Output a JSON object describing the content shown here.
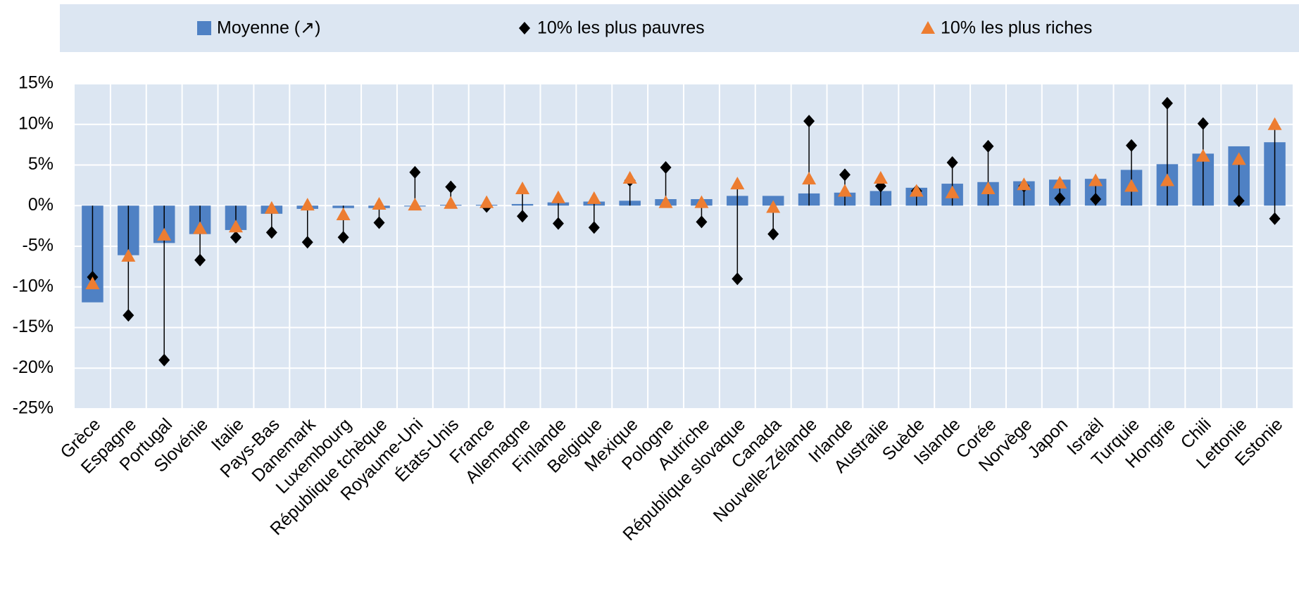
{
  "chart_data": {
    "type": "bar",
    "categories": [
      "Grèce",
      "Espagne",
      "Portugal",
      "Slovénie",
      "Italie",
      "Pays-Bas",
      "Danemark",
      "Luxembourg",
      "République tchèque",
      "Royaume-Uni",
      "États-Unis",
      "France",
      "Allemagne",
      "Finlande",
      "Belgique",
      "Mexique",
      "Pologne",
      "Autriche",
      "République slovaque",
      "Canada",
      "Nouvelle-Zélande",
      "Irlande",
      "Australie",
      "Suède",
      "Islande",
      "Corée",
      "Norvège",
      "Japon",
      "Israël",
      "Turquie",
      "Hongrie",
      "Chili",
      "Lettonie",
      "Estonie"
    ],
    "series": [
      {
        "name": "Moyenne (↗)",
        "color": "#4f81c4",
        "marker": "bar",
        "values": [
          -11.9,
          -6.1,
          -4.6,
          -3.5,
          -3.0,
          -1.0,
          -0.4,
          -0.3,
          -0.3,
          -0.1,
          0.1,
          0.1,
          0.2,
          0.4,
          0.5,
          0.6,
          0.8,
          0.8,
          1.2,
          1.2,
          1.5,
          1.6,
          1.8,
          2.2,
          2.7,
          2.9,
          3.0,
          3.2,
          3.3,
          4.4,
          5.1,
          6.4,
          7.3,
          7.8
        ]
      },
      {
        "name": "10% les plus pauvres",
        "color": "#000000",
        "marker": "diamond",
        "values": [
          -8.8,
          -13.5,
          -19.0,
          -6.7,
          -3.9,
          -3.3,
          -4.5,
          -3.9,
          -2.1,
          4.1,
          2.3,
          -0.1,
          -1.3,
          -2.2,
          -2.7,
          3.1,
          4.7,
          -2.0,
          -9.0,
          -3.5,
          10.4,
          3.8,
          2.4,
          1.8,
          5.3,
          7.3,
          2.4,
          0.9,
          0.8,
          7.4,
          12.6,
          10.1,
          0.6,
          -1.6
        ]
      },
      {
        "name": "10% les plus riches",
        "color": "#ed7d31",
        "marker": "triangle",
        "values": [
          -9.6,
          -6.2,
          -3.6,
          -2.8,
          -2.6,
          -0.3,
          0.1,
          -1.1,
          0.2,
          0.1,
          0.3,
          0.4,
          2.1,
          1.0,
          0.9,
          3.4,
          0.4,
          0.4,
          2.7,
          -0.2,
          3.3,
          1.8,
          3.4,
          1.8,
          1.6,
          2.1,
          2.6,
          2.8,
          3.1,
          2.4,
          3.1,
          6.1,
          5.7,
          10.0
        ]
      }
    ],
    "ylim": [
      -25,
      15
    ],
    "yticks": [
      {
        "value": -25,
        "label": "-25%"
      },
      {
        "value": -20,
        "label": "-20%"
      },
      {
        "value": -15,
        "label": "-15%"
      },
      {
        "value": -10,
        "label": "-10%"
      },
      {
        "value": -5,
        "label": "-5%"
      },
      {
        "value": 0,
        "label": "0%"
      },
      {
        "value": 5,
        "label": "5%"
      },
      {
        "value": 10,
        "label": "10%"
      },
      {
        "value": 15,
        "label": "15%"
      }
    ],
    "grid": true,
    "legend": "top"
  }
}
